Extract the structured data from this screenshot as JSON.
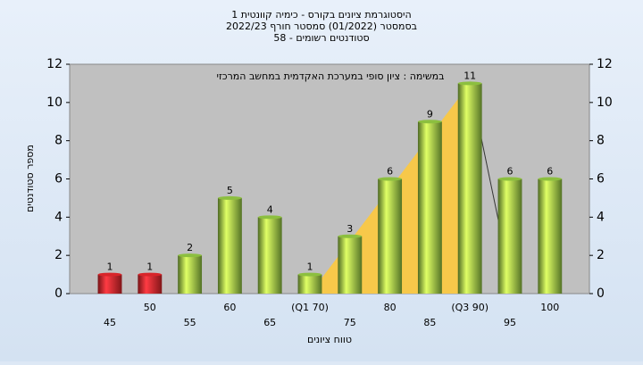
{
  "chart_data": {
    "type": "bar",
    "title_lines": [
      "היסטוגרמת ציונים בקורס - כימיה קוונטית 1",
      "בסמסטר  (01/2022)  סמסטר חורף 2022/23",
      "סטודנטים רשומים - 58"
    ],
    "annotation": "במשימה : ציון סופי במערכת האקדמית במחשב המרכזי",
    "xlabel": "טווח ציונים",
    "ylabel": "מספר סטודנטים",
    "categories": [
      "45",
      "50",
      "55",
      "60",
      "65",
      "(Q1 70)",
      "75",
      "80",
      "85",
      "(Q3 90)",
      "95",
      "100"
    ],
    "values": [
      1,
      1,
      2,
      5,
      4,
      1,
      3,
      6,
      9,
      11,
      6,
      6
    ],
    "colors": [
      "#d8252a",
      "#d8252a",
      "#8cbf3f",
      "#8cbf3f",
      "#8cbf3f",
      "#8cbf3f",
      "#8cbf3f",
      "#8cbf3f",
      "#8cbf3f",
      "#8cbf3f",
      "#8cbf3f",
      "#8cbf3f"
    ],
    "ylim": [
      0,
      12
    ],
    "yticks": [
      0,
      2,
      4,
      6,
      8,
      10,
      12
    ],
    "grid": false
  }
}
